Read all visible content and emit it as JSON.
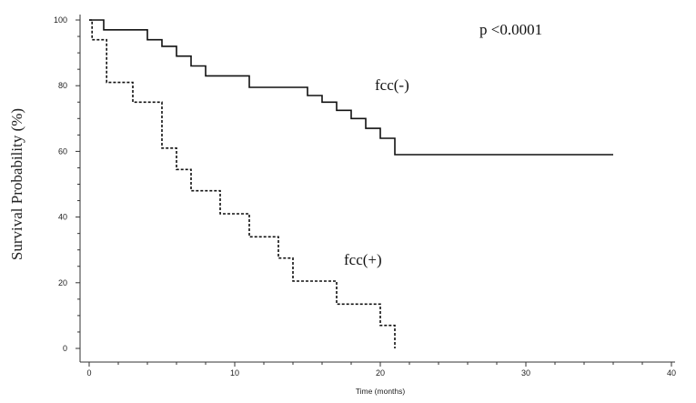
{
  "chart_data": {
    "type": "line",
    "xlabel": "Time (months)",
    "ylabel": "Survival Probability (%)",
    "xlim": [
      0,
      40
    ],
    "ylim": [
      0,
      100
    ],
    "xticks": [
      "0",
      "10",
      "20",
      "30",
      "40"
    ],
    "yticks": [
      "0",
      "20",
      "40",
      "60",
      "80",
      "100"
    ],
    "grid": false,
    "annotations": [
      {
        "id": "pvalue",
        "text": "p <0.0001"
      }
    ],
    "series": [
      {
        "name": "fcc(-)",
        "style": "solid",
        "color": "#111111",
        "x": [
          0,
          1,
          1,
          4,
          4,
          5,
          5,
          6,
          6,
          7,
          7,
          8,
          8,
          11,
          11,
          15,
          15,
          16,
          16,
          17,
          17,
          18,
          18,
          19,
          19,
          20,
          20,
          21,
          21,
          36
        ],
        "y": [
          100,
          100,
          97,
          97,
          94,
          94,
          92,
          92,
          89,
          89,
          86,
          86,
          83,
          83,
          79.5,
          79.5,
          77,
          77,
          75,
          75,
          72.5,
          72.5,
          70,
          70,
          67,
          67,
          64,
          64,
          59,
          59
        ]
      },
      {
        "name": "fcc(+)",
        "style": "dashed",
        "color": "#111111",
        "x": [
          0,
          0.2,
          0.2,
          1.2,
          1.2,
          3,
          3,
          5,
          5,
          6,
          6,
          7,
          7,
          9,
          9,
          11,
          11,
          13,
          13,
          14,
          14,
          17,
          17,
          20,
          20,
          21,
          21
        ],
        "y": [
          100,
          100,
          94,
          94,
          81,
          81,
          75,
          75,
          61,
          61,
          54.5,
          54.5,
          48,
          48,
          41,
          41,
          34,
          34,
          27.5,
          27.5,
          20.5,
          20.5,
          13.5,
          13.5,
          7,
          7,
          0
        ]
      }
    ]
  }
}
